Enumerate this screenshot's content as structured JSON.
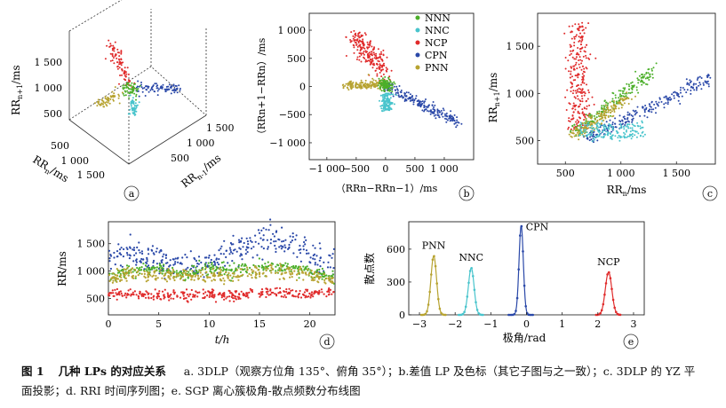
{
  "figure": {
    "caption_no": "图 1",
    "caption_title": "几种 LPs 的对应关系",
    "caption_text": "a. 3DLP（观察方位角 135°、俯角 35°）；b.差值 LP 及色标（其它子图与之一致）；c. 3DLP 的 YZ 平面投影；d. RRI 时间序列图；e. SGP 离心簇极角-散点频数分布线图"
  },
  "colors": {
    "NNN": "#4caf2a",
    "NNC": "#49c4cc",
    "NCP": "#e02b2b",
    "CPN": "#2a48a8",
    "PNN": "#b7a331"
  },
  "legend": [
    "NNN",
    "NNC",
    "NCP",
    "CPN",
    "PNN"
  ],
  "panels": {
    "a": {
      "letter": "a",
      "z_label_main": "RR",
      "z_label_sub": "n+1",
      "z_label_unit": "/ms",
      "x_label_main": "RR",
      "x_label_sub": "n",
      "x_label_unit": "/ms",
      "y_label_main": "RR",
      "y_label_sub": "n-1",
      "y_label_unit": "/ms",
      "z_ticks": [
        "1 500",
        "1 000",
        "500"
      ],
      "x_ticks": [
        "500",
        "1 000",
        "1 500"
      ],
      "y_ticks": [
        "500",
        "1 000",
        "1 500"
      ]
    },
    "b": {
      "letter": "b",
      "xlabel": "（RRn−RRn−1）/ms",
      "ylabel": "（RRn+1−RRn）/ms",
      "x_ticks": [
        "−1 000",
        "−500",
        "0",
        "500",
        "1 000"
      ],
      "y_ticks": [
        "1 000",
        "500",
        "0",
        "−500",
        "−1 000"
      ]
    },
    "c": {
      "letter": "c",
      "xlabel_main": "RR",
      "xlabel_sub": "n",
      "xlabel_unit": "/ms",
      "ylabel_main": "RR",
      "ylabel_sub": "n+1",
      "ylabel_unit": "/ms",
      "x_ticks": [
        "500",
        "1 000",
        "1 500"
      ],
      "y_ticks": [
        "1 500",
        "1 000",
        "500"
      ]
    },
    "d": {
      "letter": "d",
      "xlabel": "t/h",
      "ylabel": "RR/ms",
      "x_ticks": [
        "0",
        "5",
        "10",
        "15",
        "20"
      ],
      "y_ticks": [
        "1 500",
        "1 000",
        "500"
      ]
    },
    "e": {
      "letter": "e",
      "xlabel": "极角/rad",
      "ylabel": "散点数",
      "x_ticks": [
        "−3",
        "−2",
        "−1",
        "0",
        "1",
        "2",
        "3"
      ],
      "y_ticks": [
        "600",
        "300",
        "0"
      ],
      "peak_labels": [
        "PNN",
        "NNC",
        "CPN",
        "NCP"
      ]
    }
  },
  "chart_data": [
    {
      "type": "scatter",
      "panel": "b",
      "xlabel": "（RRn−RRn−1）/ms",
      "ylabel": "（RRn+1−RRn）/ms",
      "xlim": [
        -1300,
        1500
      ],
      "ylim": [
        -1300,
        1300
      ],
      "legend": [
        "NNN",
        "NNC",
        "NCP",
        "CPN",
        "PNN"
      ],
      "legend_position": "top-right",
      "series": [
        {
          "name": "NNN",
          "cluster_center": [
            0,
            0
          ],
          "spread": [
            60,
            60
          ]
        },
        {
          "name": "NNC",
          "cluster_center": [
            20,
            -250
          ],
          "spread": [
            50,
            150
          ]
        },
        {
          "name": "NCP",
          "cluster_center": [
            -500,
            500
          ],
          "spread": [
            250,
            250
          ]
        },
        {
          "name": "CPN",
          "cluster_center": [
            500,
            -250
          ],
          "spread": [
            350,
            180
          ]
        },
        {
          "name": "PNN",
          "cluster_center": [
            -300,
            0
          ],
          "spread": [
            250,
            40
          ]
        }
      ]
    },
    {
      "type": "scatter",
      "panel": "c",
      "xlabel": "RRn/ms",
      "ylabel": "RRn+1/ms",
      "xlim": [
        250,
        1850
      ],
      "ylim": [
        250,
        1850
      ],
      "series": [
        {
          "name": "NCP",
          "x_range": [
            450,
            750
          ],
          "y_range": [
            600,
            1750
          ]
        },
        {
          "name": "NNN",
          "x_range": [
            550,
            1300
          ],
          "y_range": [
            550,
            1250
          ]
        },
        {
          "name": "PNN",
          "x_range": [
            500,
            1100
          ],
          "y_range": [
            500,
            1000
          ]
        },
        {
          "name": "CPN",
          "x_range": [
            700,
            1800
          ],
          "y_range": [
            500,
            1200
          ]
        },
        {
          "name": "NNC",
          "x_range": [
            550,
            1300
          ],
          "y_range": [
            450,
            700
          ]
        }
      ]
    },
    {
      "type": "scatter",
      "panel": "d",
      "xlabel": "t/h",
      "ylabel": "RR/ms",
      "xlim": [
        0,
        22.5
      ],
      "ylim": [
        200,
        1900
      ],
      "series": [
        {
          "name": "CPN",
          "x": [
            0,
            2,
            4,
            6,
            8,
            10,
            12,
            14,
            16,
            18,
            20,
            22
          ],
          "y": [
            1250,
            1400,
            1200,
            1150,
            1100,
            1150,
            1350,
            1500,
            1600,
            1500,
            1300,
            1100
          ]
        },
        {
          "name": "NNN",
          "x": [
            0,
            2,
            4,
            6,
            8,
            10,
            12,
            14,
            16,
            18,
            20,
            22
          ],
          "y": [
            900,
            1000,
            1050,
            1000,
            950,
            1050,
            1000,
            1050,
            1080,
            1060,
            1000,
            900
          ]
        },
        {
          "name": "PNN",
          "x": [
            0,
            2,
            4,
            6,
            8,
            10,
            12,
            14,
            16,
            18,
            20,
            22
          ],
          "y": [
            850,
            950,
            950,
            900,
            900,
            950,
            900,
            950,
            1000,
            980,
            950,
            850
          ]
        },
        {
          "name": "NCP",
          "x": [
            0,
            2,
            4,
            6,
            8,
            10,
            12,
            14,
            16,
            18,
            20,
            22
          ],
          "y": [
            600,
            580,
            550,
            550,
            560,
            580,
            540,
            580,
            600,
            600,
            590,
            600
          ]
        }
      ]
    },
    {
      "type": "line",
      "panel": "e",
      "xlabel": "极角/rad",
      "ylabel": "散点数",
      "xlim": [
        -3.3,
        3.3
      ],
      "ylim": [
        0,
        850
      ],
      "series": [
        {
          "name": "PNN",
          "peak_x": -2.6,
          "peak_y": 540,
          "width": 0.08
        },
        {
          "name": "NNC",
          "peak_x": -1.55,
          "peak_y": 430,
          "width": 0.08
        },
        {
          "name": "CPN",
          "peak_x": -0.15,
          "peak_y": 820,
          "width": 0.06
        },
        {
          "name": "NCP",
          "peak_x": 2.3,
          "peak_y": 390,
          "width": 0.09
        }
      ]
    }
  ]
}
